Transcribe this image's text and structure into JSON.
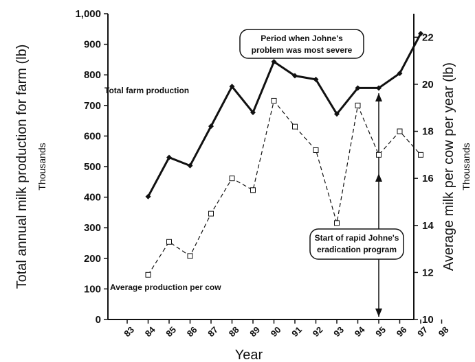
{
  "chart_data": {
    "type": "line",
    "title": "",
    "xlabel": "Year",
    "ylabel": "Total annual milk production for farm (lb)",
    "ylabel_units": "Thousands",
    "y2label": "Average milk per cow per year (lb)",
    "y2label_units": "Thousands",
    "xlim": [
      83,
      98
    ],
    "ylim": [
      0,
      1000
    ],
    "y2lim": [
      10,
      23
    ],
    "x_ticks": [
      "83",
      "84",
      "85",
      "86",
      "87",
      "88",
      "89",
      "90",
      "91",
      "92",
      "93",
      "94",
      "95",
      "96",
      "97",
      "98"
    ],
    "y_ticks": [
      "0",
      "100",
      "200",
      "300",
      "400",
      "500",
      "600",
      "700",
      "800",
      "900",
      "1,000"
    ],
    "y2_ticks": [
      "10",
      "12",
      "14",
      "16",
      "18",
      "20",
      "22"
    ],
    "grid": false,
    "legend": "none",
    "series": [
      {
        "name": "Total farm production",
        "axis": "left",
        "style": "solid",
        "color": "#111111",
        "x": [
          84,
          85,
          86,
          87,
          88,
          89,
          90,
          91,
          92,
          93,
          94,
          95,
          96,
          97
        ],
        "values": [
          402,
          530,
          503,
          632,
          762,
          677,
          843,
          797,
          785,
          672,
          757,
          757,
          805,
          935
        ]
      },
      {
        "name": "Average production per cow",
        "axis": "right",
        "style": "dashed",
        "color": "#111111",
        "x": [
          84,
          85,
          86,
          87,
          88,
          89,
          90,
          91,
          92,
          93,
          94,
          95,
          96,
          97
        ],
        "values": [
          11.9,
          13.3,
          12.7,
          14.5,
          16.0,
          15.5,
          19.3,
          18.2,
          17.2,
          14.1,
          19.1,
          17.0,
          18.0,
          17.0
        ]
      }
    ],
    "annotations": {
      "series_label_total": "Total farm production",
      "series_label_cow": "Average production per cow",
      "severe_period_line1": "Period when Johne's",
      "severe_period_line2": "problem was most severe",
      "eradication_line1": "Start of rapid Johne's",
      "eradication_line2": "eradication program",
      "marker_year": 95
    }
  }
}
